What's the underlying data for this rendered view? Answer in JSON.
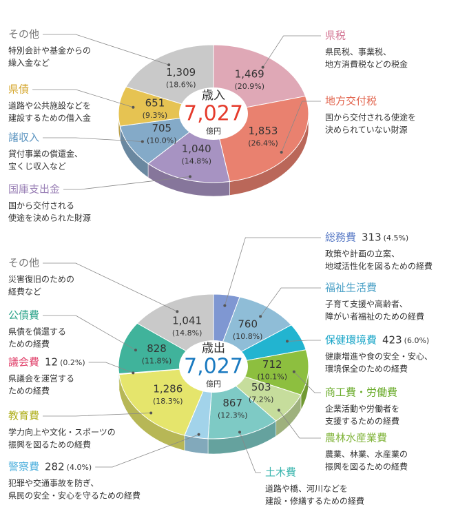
{
  "chart_data": [
    {
      "type": "pie",
      "title": "歳入",
      "total": 7027,
      "total_label": "7,027",
      "unit": "億円",
      "total_color": "#e53b2c",
      "categories": [
        "県税",
        "地方交付税",
        "国庫支出金",
        "諸収入",
        "県債",
        "その他"
      ],
      "values": [
        1469,
        1853,
        1040,
        705,
        651,
        1309
      ],
      "value_labels": [
        "1,469",
        "1,853",
        "1,040",
        "705",
        "651",
        "1,309"
      ],
      "share_labels": [
        "(20.9%)",
        "(26.4%)",
        "(14.8%)",
        "(10.0%)",
        "(9.3%)",
        "(18.6%)"
      ],
      "descriptions": [
        [
          "県民税、事業税、",
          "地方消費税などの税金"
        ],
        [
          "国から交付される使途を",
          "決められていない財源"
        ],
        [
          "国から交付される",
          "使途を決められた財源"
        ],
        [
          "貸付事業の償還金、",
          "宝くじ収入など"
        ],
        [
          "道路や公共施設などを",
          "建設するための借入金"
        ],
        [
          "特別会計や基金からの",
          "繰入金など"
        ]
      ],
      "colors": [
        "#dfa8b6",
        "#e9816f",
        "#a793c2",
        "#84aac8",
        "#e6c352",
        "#c9c9c9"
      ],
      "name_colors": [
        "#d47896",
        "#e2654e",
        "#9a80b6",
        "#5b94c0",
        "#d4a52a",
        "#777777"
      ]
    },
    {
      "type": "pie",
      "title": "歳出",
      "total": 7027,
      "total_label": "7,027",
      "unit": "億円",
      "total_color": "#1a7ac0",
      "categories": [
        "総務費",
        "福祉生活費",
        "保健環境費",
        "商工費・労働費",
        "農林水産業費",
        "土木費",
        "警察費",
        "教育費",
        "議会費",
        "公債費",
        "その他"
      ],
      "values": [
        313,
        760,
        423,
        712,
        503,
        867,
        282,
        1286,
        12,
        828,
        1041
      ],
      "value_labels": [
        "313",
        "760",
        "423",
        "712",
        "503",
        "867",
        "282",
        "1,286",
        "12",
        "828",
        "1,041"
      ],
      "share_labels": [
        "(4.5%)",
        "(10.8%)",
        "(6.0%)",
        "(10.1%)",
        "(7.2%)",
        "(12.3%)",
        "(4.0%)",
        "(18.3%)",
        "(0.2%)",
        "(11.8%)",
        "(14.8%)"
      ],
      "descriptions": [
        [
          "政策や計画の立案、",
          "地域活性化を図るための経費"
        ],
        [
          "子育て支援や高齢者、",
          "障がい者福祉のための経費"
        ],
        [
          "健康増進や食の安全・安心、",
          "環境保全のための経費"
        ],
        [
          "企業活動や労働者を",
          "支援するための経費"
        ],
        [
          "農業、林業、水産業の",
          "振興を図るための経費"
        ],
        [
          "道路や橋、河川などを",
          "建設・修繕するための経費"
        ],
        [
          "犯罪や交通事故を防ぎ、",
          "県民の安全・安心を守るための経費"
        ],
        [
          "学力向上や文化・スポーツの",
          "振興を図るための経費"
        ],
        [
          "県議会を運営する",
          "ための経費"
        ],
        [
          "県債を償還する",
          "ための経費"
        ],
        [
          "災害復旧のための",
          "経費など"
        ]
      ],
      "colors": [
        "#7f97d2",
        "#8fbdd7",
        "#22b4d0",
        "#8dbf3f",
        "#c6dd9c",
        "#7ecac5",
        "#a2d3ea",
        "#e5e56c",
        "#e06080",
        "#40b39b",
        "#c9c9c9"
      ],
      "name_colors": [
        "#5a7bc6",
        "#4fa3c8",
        "#1aa6c8",
        "#6aab2a",
        "#7fb338",
        "#3ab5ae",
        "#4fb0dd",
        "#b0b020",
        "#e0406a",
        "#2fa58c",
        "#777777"
      ]
    }
  ]
}
